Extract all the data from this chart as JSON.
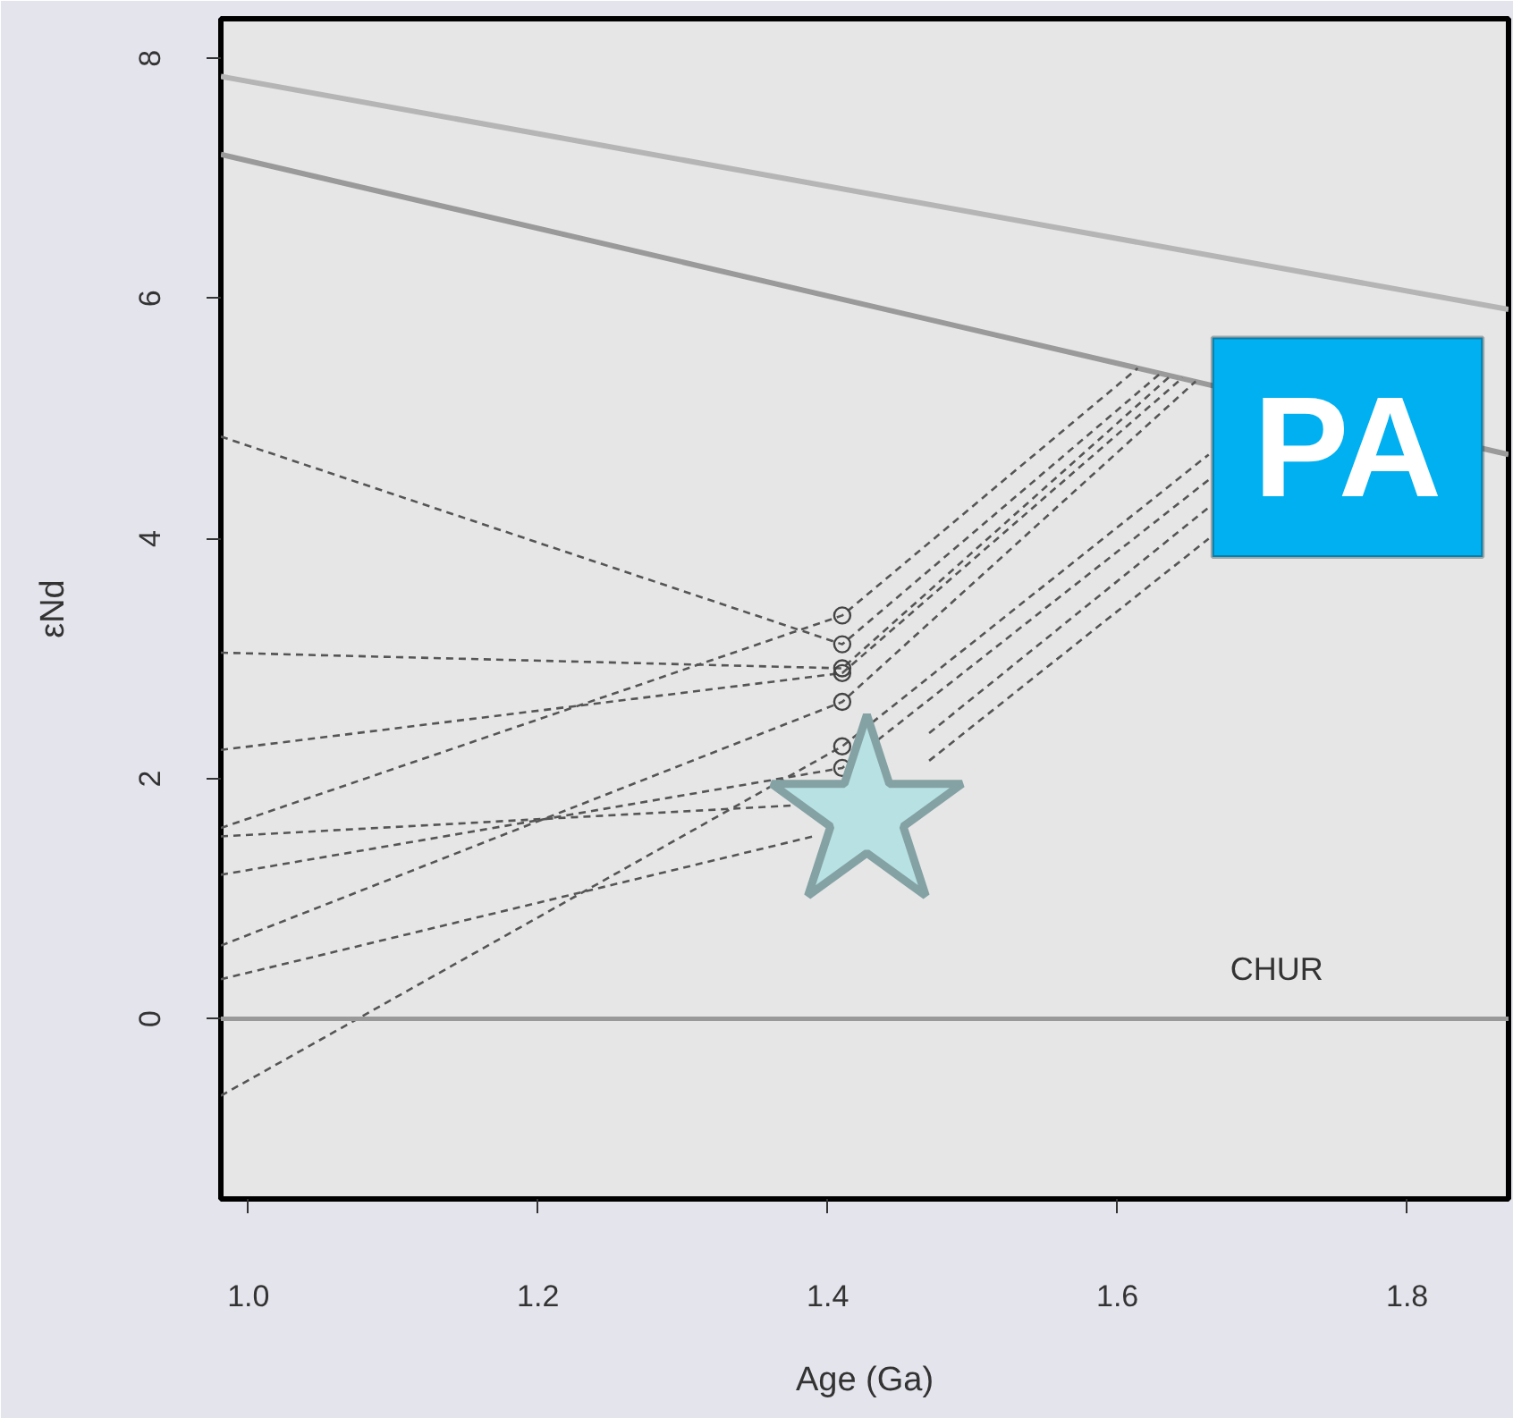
{
  "chart_data": {
    "type": "line",
    "xlabel": "Age (Ga)",
    "ylabel": "εNd",
    "xlim": [
      0.981,
      1.87
    ],
    "ylim": [
      -1.5,
      8.33
    ],
    "xticks": [
      {
        "value": 1,
        "label": "1.0"
      },
      1.2,
      1.4,
      1.6,
      1.8
    ],
    "yticks": [
      0,
      2,
      4,
      6,
      8
    ],
    "series": [
      {
        "color": "#b5b5b5",
        "line_style": "solid",
        "x": [
          0.981,
          1.87
        ],
        "values": [
          7.85,
          5.91
        ]
      },
      {
        "color": "#9a9a9a",
        "line_style": "solid",
        "x": [
          0.981,
          1.87
        ],
        "values": [
          7.2,
          4.7
        ]
      },
      {
        "color": "#555555",
        "line_style": "dashed",
        "x": [
          0.981,
          1.41,
          1.63
        ],
        "values": [
          4.85,
          3.12,
          5.38
        ]
      },
      {
        "color": "#555555",
        "line_style": "dashed",
        "x": [
          0.981,
          1.41,
          1.637
        ],
        "values": [
          3.05,
          2.92,
          5.36
        ]
      },
      {
        "color": "#555555",
        "line_style": "dashed",
        "x": [
          0.981,
          1.41,
          1.645
        ],
        "values": [
          2.24,
          2.88,
          5.34
        ]
      },
      {
        "color": "#555555",
        "line_style": "dashed",
        "x": [
          0.981,
          1.41,
          1.614
        ],
        "values": [
          1.59,
          3.36,
          5.42
        ]
      },
      {
        "color": "#555555",
        "line_style": "dashed",
        "x": [
          0.981,
          1.38,
          1.41,
          1.47,
          1.663
        ],
        "values": [
          1.52,
          1.78,
          null,
          2.38,
          4.26
        ]
      },
      {
        "color": "#555555",
        "line_style": "dashed",
        "x": [
          0.981,
          1.41,
          1.663
        ],
        "values": [
          1.2,
          2.09,
          4.49
        ]
      },
      {
        "color": "#555555",
        "line_style": "dashed",
        "x": [
          0.981,
          1.41,
          1.654
        ],
        "values": [
          0.61,
          2.64,
          5.31
        ]
      },
      {
        "color": "#555555",
        "line_style": "dashed",
        "x": [
          0.981,
          1.39,
          1.41,
          1.47,
          1.663
        ],
        "values": [
          0.33,
          1.52,
          null,
          2.15,
          4.0
        ]
      },
      {
        "color": "#555555",
        "line_style": "dashed",
        "x": [
          0.981,
          1.41,
          1.663
        ],
        "values": [
          -0.64,
          2.27,
          4.7
        ]
      },
      {
        "type": "scatter",
        "color": "#444444",
        "marker": "circle",
        "x": [
          1.41,
          1.41,
          1.41,
          1.41,
          1.41,
          1.41,
          1.41
        ],
        "values": [
          3.36,
          3.12,
          2.92,
          2.88,
          2.64,
          2.27,
          2.09
        ]
      },
      {
        "type": "scatter",
        "color": "#b8e1e4",
        "marker": "star",
        "x": [
          1.427
        ],
        "values": [
          1.7
        ]
      }
    ],
    "ref_lines": [
      {
        "axis": "y",
        "value": 0,
        "label": "CHUR",
        "color": "#999999"
      }
    ],
    "annotations": [
      "PA"
    ]
  }
}
